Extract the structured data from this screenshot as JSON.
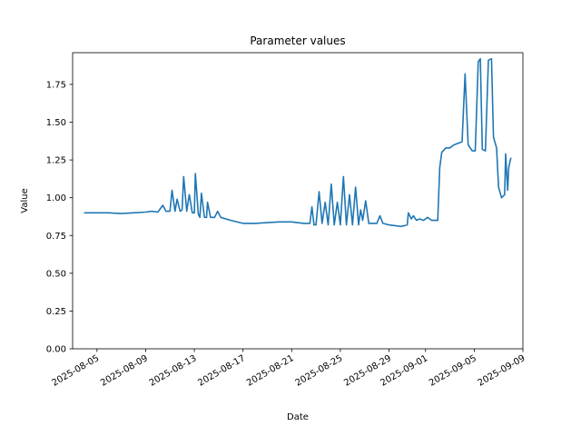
{
  "chart_data": {
    "type": "line",
    "title": "Parameter values",
    "xlabel": "Date",
    "ylabel": "Value",
    "xlim": [
      "2025-08-03",
      "2025-09-09"
    ],
    "ylim": [
      0,
      1.96
    ],
    "grid": false,
    "legend": "none",
    "x_ticks": [
      "2025-08-05",
      "2025-08-09",
      "2025-08-13",
      "2025-08-17",
      "2025-08-21",
      "2025-08-25",
      "2025-08-29",
      "2025-09-01",
      "2025-09-05",
      "2025-09-09"
    ],
    "y_ticks": [
      "0.00",
      "0.25",
      "0.50",
      "0.75",
      "1.00",
      "1.25",
      "1.50",
      "1.75"
    ],
    "series": [
      {
        "color": "#1f77b4",
        "points": [
          [
            "2025-08-04",
            0.9
          ],
          [
            "2025-08-05",
            0.9
          ],
          [
            "2025-08-06",
            0.9
          ],
          [
            "2025-08-07",
            0.895
          ],
          [
            "2025-08-08",
            0.9
          ],
          [
            "2025-08-09",
            0.905
          ],
          [
            "2025-08-09T12:00",
            0.91
          ],
          [
            "2025-08-10",
            0.905
          ],
          [
            "2025-08-10T10:00",
            0.95
          ],
          [
            "2025-08-10T16:00",
            0.91
          ],
          [
            "2025-08-11",
            0.91
          ],
          [
            "2025-08-11T04:00",
            1.05
          ],
          [
            "2025-08-11T10:00",
            0.91
          ],
          [
            "2025-08-11T14:00",
            0.99
          ],
          [
            "2025-08-11T20:00",
            0.91
          ],
          [
            "2025-08-12",
            0.92
          ],
          [
            "2025-08-12T03:00",
            1.14
          ],
          [
            "2025-08-12T09:00",
            0.91
          ],
          [
            "2025-08-12T14:00",
            1.02
          ],
          [
            "2025-08-12T20:00",
            0.9
          ],
          [
            "2025-08-13",
            0.9
          ],
          [
            "2025-08-13T02:00",
            1.16
          ],
          [
            "2025-08-13T08:00",
            0.89
          ],
          [
            "2025-08-13T11:00",
            0.87
          ],
          [
            "2025-08-13T14:00",
            1.03
          ],
          [
            "2025-08-13T20:00",
            0.87
          ],
          [
            "2025-08-14",
            0.87
          ],
          [
            "2025-08-14T02:00",
            0.97
          ],
          [
            "2025-08-14T08:00",
            0.87
          ],
          [
            "2025-08-14T16:00",
            0.87
          ],
          [
            "2025-08-14T22:00",
            0.91
          ],
          [
            "2025-08-15T04:00",
            0.87
          ],
          [
            "2025-08-16",
            0.85
          ],
          [
            "2025-08-17",
            0.83
          ],
          [
            "2025-08-18",
            0.83
          ],
          [
            "2025-08-19",
            0.835
          ],
          [
            "2025-08-20",
            0.84
          ],
          [
            "2025-08-21",
            0.84
          ],
          [
            "2025-08-22",
            0.83
          ],
          [
            "2025-08-22T12:00",
            0.83
          ],
          [
            "2025-08-22T16:00",
            0.94
          ],
          [
            "2025-08-22T20:00",
            0.82
          ],
          [
            "2025-08-23",
            0.82
          ],
          [
            "2025-08-23T06:00",
            1.04
          ],
          [
            "2025-08-23T12:00",
            0.83
          ],
          [
            "2025-08-23T18:00",
            0.97
          ],
          [
            "2025-08-24",
            0.82
          ],
          [
            "2025-08-24T06:00",
            1.09
          ],
          [
            "2025-08-24T12:00",
            0.82
          ],
          [
            "2025-08-24T18:00",
            0.97
          ],
          [
            "2025-08-25",
            0.82
          ],
          [
            "2025-08-25T06:00",
            1.14
          ],
          [
            "2025-08-25T12:00",
            0.82
          ],
          [
            "2025-08-25T18:00",
            1.02
          ],
          [
            "2025-08-26",
            0.82
          ],
          [
            "2025-08-26T06:00",
            1.07
          ],
          [
            "2025-08-26T12:00",
            0.82
          ],
          [
            "2025-08-26T16:00",
            0.92
          ],
          [
            "2025-08-26T20:00",
            0.85
          ],
          [
            "2025-08-27T02:00",
            0.98
          ],
          [
            "2025-08-27T08:00",
            0.83
          ],
          [
            "2025-08-28",
            0.83
          ],
          [
            "2025-08-28T06:00",
            0.88
          ],
          [
            "2025-08-28T12:00",
            0.83
          ],
          [
            "2025-08-29",
            0.82
          ],
          [
            "2025-08-30",
            0.81
          ],
          [
            "2025-08-30T12:00",
            0.82
          ],
          [
            "2025-08-30T14:00",
            0.9
          ],
          [
            "2025-08-30T20:00",
            0.86
          ],
          [
            "2025-08-31",
            0.88
          ],
          [
            "2025-08-31T06:00",
            0.85
          ],
          [
            "2025-08-31T12:00",
            0.86
          ],
          [
            "2025-08-31T20:00",
            0.85
          ],
          [
            "2025-09-01T04:00",
            0.87
          ],
          [
            "2025-09-01T12:00",
            0.85
          ],
          [
            "2025-09-02",
            0.85
          ],
          [
            "2025-09-02T04:00",
            1.2
          ],
          [
            "2025-09-02T08:00",
            1.3
          ],
          [
            "2025-09-02T16:00",
            1.33
          ],
          [
            "2025-09-03",
            1.33
          ],
          [
            "2025-09-03T08:00",
            1.35
          ],
          [
            "2025-09-03T16:00",
            1.36
          ],
          [
            "2025-09-04",
            1.37
          ],
          [
            "2025-09-04T06:00",
            1.82
          ],
          [
            "2025-09-04T12:00",
            1.35
          ],
          [
            "2025-09-04T20:00",
            1.31
          ],
          [
            "2025-09-05T02:00",
            1.31
          ],
          [
            "2025-09-05T08:00",
            1.9
          ],
          [
            "2025-09-05T12:00",
            1.92
          ],
          [
            "2025-09-05T16:00",
            1.32
          ],
          [
            "2025-09-05T22:00",
            1.31
          ],
          [
            "2025-09-06T04:00",
            1.91
          ],
          [
            "2025-09-06T10:00",
            1.92
          ],
          [
            "2025-09-06T14:00",
            1.4
          ],
          [
            "2025-09-06T20:00",
            1.33
          ],
          [
            "2025-09-07",
            1.07
          ],
          [
            "2025-09-07T06:00",
            1.0
          ],
          [
            "2025-09-07T12:00",
            1.02
          ],
          [
            "2025-09-07T14:00",
            1.29
          ],
          [
            "2025-09-07T18:00",
            1.05
          ],
          [
            "2025-09-07T20:00",
            1.2
          ],
          [
            "2025-09-08",
            1.26
          ]
        ]
      }
    ]
  }
}
